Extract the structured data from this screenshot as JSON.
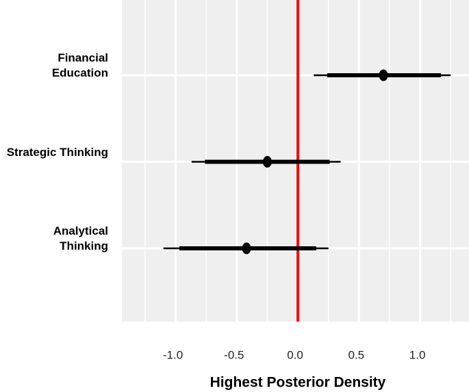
{
  "chart_data": {
    "type": "interval",
    "x_label": "Highest Posterior Density",
    "categories": [
      "Financial\nEducation",
      "Strategic Thinking",
      "Analytical\nThinking"
    ],
    "values": [
      0.7,
      -0.25,
      -0.42
    ],
    "inner": [
      [
        0.24,
        1.17
      ],
      [
        -0.76,
        0.26
      ],
      [
        -0.97,
        0.15
      ]
    ],
    "outer": [
      [
        0.13,
        1.25
      ],
      [
        -0.87,
        0.35
      ],
      [
        -1.1,
        0.25
      ]
    ],
    "color": "#000000",
    "ref_line": {
      "value": 0,
      "color": "#ff0000"
    },
    "xlim": [
      -1.44,
      1.4
    ],
    "xticks": [
      {
        "value": -1,
        "label": "-1.0"
      },
      {
        "value": -0.5,
        "label": "-0.5"
      },
      {
        "value": 0,
        "label": "0.0"
      },
      {
        "value": 0.5,
        "label": "0.5"
      },
      {
        "value": 1,
        "label": "1.0"
      }
    ],
    "grid": true
  }
}
